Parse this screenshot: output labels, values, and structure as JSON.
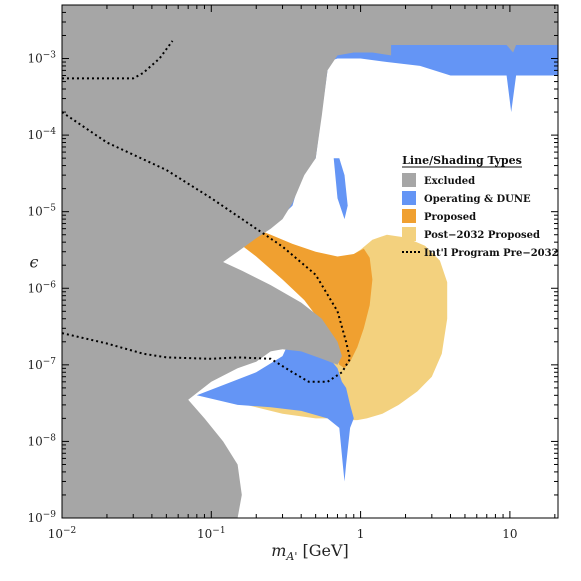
{
  "chart_data": {
    "type": "area",
    "xlabel": "m_{A'}  [GeV]",
    "ylabel": "ϵ",
    "xscale": "log",
    "yscale": "log",
    "xlim": [
      0.01,
      21
    ],
    "ylim": [
      1e-09,
      0.005
    ],
    "xticks": [
      {
        "value": 0.01,
        "label": "10",
        "exp": "−2"
      },
      {
        "value": 0.1,
        "label": "10",
        "exp": "−1"
      },
      {
        "value": 1,
        "label": "1",
        "exp": ""
      },
      {
        "value": 10,
        "label": "10",
        "exp": ""
      }
    ],
    "yticks": [
      {
        "value": 1e-09,
        "label": "10",
        "exp": "−9"
      },
      {
        "value": 1e-08,
        "label": "10",
        "exp": "−8"
      },
      {
        "value": 1e-07,
        "label": "10",
        "exp": "−7"
      },
      {
        "value": 1e-06,
        "label": "10",
        "exp": "−6"
      },
      {
        "value": 1e-05,
        "label": "10",
        "exp": "−5"
      },
      {
        "value": 0.0001,
        "label": "10",
        "exp": "−4"
      },
      {
        "value": 0.001,
        "label": "10",
        "exp": "−3"
      }
    ],
    "legend": {
      "title": "Line/Shading Types",
      "placement": "right",
      "entries": [
        {
          "label": "Excluded",
          "kind": "patch",
          "color": "#a6a6a6"
        },
        {
          "label": "Operating & DUNE",
          "kind": "patch",
          "color": "#6495f5"
        },
        {
          "label": "Proposed",
          "kind": "patch",
          "color": "#f0a030"
        },
        {
          "label": "Post−2032 Proposed",
          "kind": "patch",
          "color": "#f3d17e"
        },
        {
          "label": "Int'l Program Pre−2032",
          "kind": "line",
          "color": "#000000"
        }
      ]
    },
    "series": [
      {
        "name": "Post−2032 Proposed",
        "color": "#f3d17e",
        "points": [
          [
            0.08,
            4e-08
          ],
          [
            0.15,
            3.2e-08
          ],
          [
            0.3,
            2.3e-08
          ],
          [
            0.5,
            2e-08
          ],
          [
            0.65,
            2e-08
          ],
          [
            0.8,
            1.9e-08
          ],
          [
            0.95,
            1.9e-08
          ],
          [
            1.1,
            2e-08
          ],
          [
            1.4,
            2.3e-08
          ],
          [
            1.8,
            3e-08
          ],
          [
            2.4,
            4.5e-08
          ],
          [
            3,
            7e-08
          ],
          [
            3.5,
            1.4e-07
          ],
          [
            3.8,
            4e-07
          ],
          [
            3.8,
            1.2e-06
          ],
          [
            3.4,
            2.3e-06
          ],
          [
            2.7,
            3.6e-06
          ],
          [
            2,
            4.6e-06
          ],
          [
            1.5,
            5e-06
          ],
          [
            1.2,
            4.3e-06
          ],
          [
            1,
            3.2e-06
          ],
          [
            0.85,
            2.6e-06
          ],
          [
            0.7,
            2.4e-06
          ],
          [
            0.5,
            2.9e-06
          ],
          [
            0.35,
            3.6e-06
          ],
          [
            0.25,
            4.2e-06
          ],
          [
            0.22,
            5e-06
          ],
          [
            0.35,
            2.5e-06
          ],
          [
            0.5,
            1.1e-06
          ],
          [
            0.6,
            4e-07
          ],
          [
            0.65,
            1.7e-07
          ],
          [
            0.55,
            1e-07
          ],
          [
            0.4,
            7e-08
          ],
          [
            0.25,
            5e-08
          ],
          [
            0.12,
            4.2e-08
          ]
        ]
      },
      {
        "name": "Proposed",
        "color": "#f0a030",
        "points": [
          [
            0.15,
            7.5e-06
          ],
          [
            0.25,
            5e-06
          ],
          [
            0.35,
            3.8e-06
          ],
          [
            0.5,
            3e-06
          ],
          [
            0.7,
            2.6e-06
          ],
          [
            0.9,
            2.8e-06
          ],
          [
            1.05,
            3.3e-06
          ],
          [
            1.15,
            2.5e-06
          ],
          [
            1.2,
            1.3e-06
          ],
          [
            1.15,
            6e-07
          ],
          [
            1.05,
            3e-07
          ],
          [
            0.95,
            1.7e-07
          ],
          [
            0.85,
            1.1e-07
          ],
          [
            0.78,
            9e-08
          ],
          [
            0.72,
            1e-07
          ],
          [
            0.65,
            1.8e-07
          ],
          [
            0.55,
            3.5e-07
          ],
          [
            0.42,
            7e-07
          ],
          [
            0.3,
            1.3e-06
          ],
          [
            0.2,
            2.6e-06
          ],
          [
            0.15,
            4e-06
          ]
        ]
      },
      {
        "name": "Operating & DUNE",
        "color": "#6495f5",
        "points": [
          [
            0.015,
            0.0011
          ],
          [
            0.02,
            0.0009
          ],
          [
            0.03,
            0.0007
          ],
          [
            0.05,
            0.0006
          ],
          [
            0.1,
            0.0006
          ],
          [
            0.2,
            0.0006
          ],
          [
            0.3,
            0.0006
          ],
          [
            0.4,
            0.0007
          ],
          [
            0.5,
            0.0008
          ],
          [
            0.7,
            0.001
          ],
          [
            1,
            0.001
          ],
          [
            1.5,
            0.0009
          ],
          [
            2.5,
            0.0008
          ],
          [
            4,
            0.0006
          ],
          [
            7,
            0.0006
          ],
          [
            9.5,
            0.0006
          ],
          [
            10.2,
            0.0002
          ],
          [
            11,
            0.0006
          ],
          [
            15,
            0.0006
          ],
          [
            21,
            0.0006
          ],
          [
            21,
            0.002
          ],
          [
            0.015,
            0.002
          ]
        ]
      },
      {
        "name": "Operating & DUNE",
        "color": "#6495f5",
        "points": [
          [
            0.018,
            0.001
          ],
          [
            0.018,
            0.0003
          ],
          [
            0.025,
            0.00012
          ],
          [
            0.05,
            5e-05
          ],
          [
            0.1,
            2e-05
          ],
          [
            0.2,
            1e-05
          ],
          [
            0.3,
            9e-06
          ],
          [
            0.35,
            1.2e-05
          ],
          [
            0.4,
            3e-05
          ],
          [
            0.5,
            5e-05
          ],
          [
            0.55,
            0.0002
          ],
          [
            0.6,
            0.0007
          ],
          [
            0.6,
            0.001
          ],
          [
            0.018,
            0.001
          ]
        ]
      },
      {
        "name": "Operating & DUNE",
        "color": "#6495f5",
        "points": [
          [
            0.66,
            5e-05
          ],
          [
            0.7,
            1.5e-05
          ],
          [
            0.78,
            8e-06
          ],
          [
            0.82,
            1.2e-05
          ],
          [
            0.78,
            3e-05
          ],
          [
            0.72,
            5e-05
          ]
        ]
      },
      {
        "name": "Operating & DUNE",
        "color": "#6495f5",
        "points": [
          [
            0.08,
            4e-08
          ],
          [
            0.2,
            8e-08
          ],
          [
            0.3,
            1.3e-07
          ],
          [
            0.35,
            2.5e-07
          ],
          [
            0.45,
            2e-07
          ],
          [
            0.6,
            1.3e-07
          ],
          [
            0.7,
            9e-08
          ],
          [
            0.75,
            6e-08
          ],
          [
            0.8,
            5e-08
          ],
          [
            0.85,
            3e-08
          ],
          [
            0.9,
            2e-08
          ],
          [
            0.85,
            1.5e-08
          ],
          [
            0.8,
            5e-09
          ],
          [
            0.78,
            3e-09
          ],
          [
            0.76,
            5e-09
          ],
          [
            0.72,
            1.5e-08
          ],
          [
            0.6,
            2e-08
          ],
          [
            0.4,
            2.5e-08
          ],
          [
            0.25,
            2.8e-08
          ],
          [
            0.15,
            3e-08
          ]
        ]
      },
      {
        "name": "Excluded",
        "color": "#a6a6a6",
        "points": [
          [
            0.01,
            1e-09
          ],
          [
            0.01,
            0.005
          ],
          [
            21,
            0.005
          ],
          [
            21,
            0.0015
          ],
          [
            15,
            0.0015
          ],
          [
            11,
            0.0015
          ],
          [
            10.5,
            0.0012
          ],
          [
            9.5,
            0.0015
          ],
          [
            5,
            0.0015
          ],
          [
            3,
            0.0015
          ],
          [
            1.6,
            0.0015
          ],
          [
            1.6,
            0.0011
          ],
          [
            1.2,
            0.0012
          ],
          [
            0.9,
            0.0012
          ],
          [
            0.7,
            0.0011
          ],
          [
            0.6,
            0.0007
          ],
          [
            0.55,
            0.00018
          ],
          [
            0.5,
            5e-05
          ],
          [
            0.42,
            3e-05
          ],
          [
            0.35,
            1.3e-05
          ],
          [
            0.3,
            8e-06
          ],
          [
            0.25,
            6e-06
          ],
          [
            0.2,
            4.5e-06
          ],
          [
            0.15,
            3e-06
          ],
          [
            0.12,
            2.2e-06
          ],
          [
            0.16,
            1.7e-06
          ],
          [
            0.25,
            1.1e-06
          ],
          [
            0.4,
            6.5e-07
          ],
          [
            0.55,
            4e-07
          ],
          [
            0.7,
            2e-07
          ],
          [
            0.75,
            1.3e-07
          ],
          [
            0.7,
            1e-07
          ],
          [
            0.55,
            1.2e-07
          ],
          [
            0.4,
            1.5e-07
          ],
          [
            0.3,
            1.6e-07
          ],
          [
            0.25,
            1.5e-07
          ],
          [
            0.2,
            1.1e-07
          ],
          [
            0.15,
            9e-08
          ],
          [
            0.1,
            6e-08
          ],
          [
            0.07,
            3.5e-08
          ],
          [
            0.09,
            2e-08
          ],
          [
            0.12,
            1e-08
          ],
          [
            0.15,
            5e-09
          ],
          [
            0.16,
            2e-09
          ],
          [
            0.15,
            1e-09
          ]
        ]
      },
      {
        "name": "Int'l Program Pre−2032",
        "color": "#000000",
        "style": "dotted",
        "points": [
          [
            0.01,
            0.00055
          ],
          [
            0.02,
            0.00055
          ],
          [
            0.03,
            0.00055
          ],
          [
            0.035,
            0.00065
          ],
          [
            0.045,
            0.001
          ],
          [
            0.055,
            0.0017
          ]
        ]
      },
      {
        "name": "Int'l Program Pre−2032",
        "color": "#000000",
        "style": "dotted",
        "points": [
          [
            0.01,
            0.0002
          ],
          [
            0.02,
            8e-05
          ],
          [
            0.05,
            3.5e-05
          ],
          [
            0.1,
            1.5e-05
          ],
          [
            0.2,
            6e-06
          ],
          [
            0.3,
            3.5e-06
          ],
          [
            0.5,
            1.5e-06
          ],
          [
            0.7,
            5e-07
          ],
          [
            0.8,
            2e-07
          ],
          [
            0.85,
            1.2e-07
          ],
          [
            0.75,
            8e-08
          ],
          [
            0.6,
            6e-08
          ],
          [
            0.45,
            6e-08
          ],
          [
            0.35,
            8e-08
          ],
          [
            0.25,
            1.2e-07
          ],
          [
            0.15,
            1.25e-07
          ],
          [
            0.1,
            1.2e-07
          ],
          [
            0.05,
            1.25e-07
          ],
          [
            0.035,
            1.4e-07
          ],
          [
            0.02,
            1.9e-07
          ],
          [
            0.01,
            2.6e-07
          ]
        ]
      }
    ]
  }
}
